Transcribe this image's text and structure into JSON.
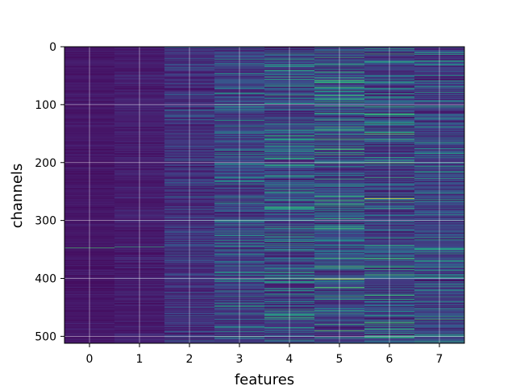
{
  "chart_data": {
    "type": "heatmap",
    "title": "",
    "xlabel": "features",
    "ylabel": "channels",
    "x_categories": [
      "0",
      "1",
      "2",
      "3",
      "4",
      "5",
      "6",
      "7"
    ],
    "y_ticks": [
      "0",
      "100",
      "200",
      "300",
      "400",
      "500"
    ],
    "y_tick_values": [
      0,
      100,
      200,
      300,
      400,
      500
    ],
    "ylim": [
      512,
      0
    ],
    "xlim": [
      -0.5,
      7.5
    ],
    "n_rows": 512,
    "n_cols": 8,
    "colormap": "viridis",
    "grid": true,
    "column_mean_intensity": [
      0.08,
      0.1,
      0.18,
      0.26,
      0.28,
      0.3,
      0.28,
      0.26
    ],
    "column_variability": [
      0.04,
      0.06,
      0.14,
      0.2,
      0.24,
      0.26,
      0.26,
      0.22
    ],
    "notable_cells": [
      {
        "channel": 262,
        "feature": 6,
        "intensity": 0.98
      },
      {
        "channel": 401,
        "feature": 5,
        "intensity": 0.88
      },
      {
        "channel": 347,
        "feature": 0,
        "intensity": 0.7
      },
      {
        "channel": 345,
        "feature": 1,
        "intensity": 0.65
      },
      {
        "channel": 150,
        "feature": 6,
        "intensity": 0.8
      },
      {
        "channel": 490,
        "feature": 5,
        "intensity": 0.75
      },
      {
        "channel": 62,
        "feature": 5,
        "intensity": 0.6
      },
      {
        "channel": 88,
        "feature": 6,
        "intensity": 0.6
      },
      {
        "channel": 10,
        "feature": 7,
        "intensity": 0.6
      },
      {
        "channel": 470,
        "feature": 7,
        "intensity": 0.7
      },
      {
        "channel": 102,
        "feature": 7,
        "intensity": 0.6
      }
    ]
  }
}
